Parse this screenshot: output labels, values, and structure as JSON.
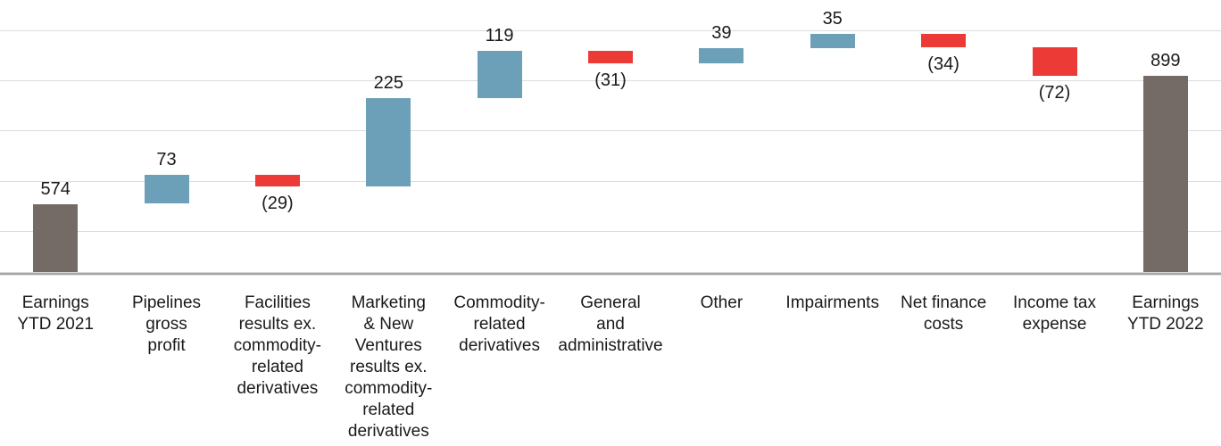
{
  "chart_data": {
    "type": "waterfall",
    "title": "",
    "subtitle": "",
    "legend": "none",
    "y_axis_tick_labels": "none",
    "grid": "horizontal gridlines on, drawn behind bars",
    "number_format": "negatives shown in parentheses",
    "steps": [
      {
        "category": "Earnings\nYTD 2021",
        "value": 574,
        "kind": "total",
        "label": "574"
      },
      {
        "category": "Pipelines\ngross\nprofit",
        "value": 73,
        "kind": "increase",
        "label": "73"
      },
      {
        "category": "Facilities\nresults ex.\ncommodity-\nrelated\nderivatives",
        "value": -29,
        "kind": "decrease",
        "label": "(29)"
      },
      {
        "category": "Marketing\n& New\nVentures\nresults ex.\ncommodity-\nrelated\nderivatives",
        "value": 225,
        "kind": "increase",
        "label": "225"
      },
      {
        "category": "Commodity-\nrelated\nderivatives",
        "value": 119,
        "kind": "increase",
        "label": "119"
      },
      {
        "category": "General\nand\nadministrative",
        "value": -31,
        "kind": "decrease",
        "label": "(31)"
      },
      {
        "category": "Other",
        "value": 39,
        "kind": "increase",
        "label": "39"
      },
      {
        "category": "Impairments",
        "value": 35,
        "kind": "increase",
        "label": "35"
      },
      {
        "category": "Net finance\ncosts",
        "value": -34,
        "kind": "decrease",
        "label": "(34)"
      },
      {
        "category": "Income tax\nexpense",
        "value": -72,
        "kind": "decrease",
        "label": "(72)"
      },
      {
        "category": "Earnings\nYTD 2022",
        "value": 899,
        "kind": "total",
        "label": "899"
      }
    ],
    "cumulative_levels": [
      574,
      647,
      618,
      843,
      962,
      931,
      970,
      1005,
      971,
      899
    ],
    "ylim": [
      396,
      1092
    ],
    "gridline_values": [
      506,
      633,
      761,
      888,
      1015
    ],
    "colors": {
      "increase": "#6CA0B8",
      "decrease": "#EC3A36",
      "total": "#746B66",
      "gridline": "#DCDCDC",
      "axis_line": "#A6A6A6",
      "label_text": "#1A1A1A"
    }
  }
}
